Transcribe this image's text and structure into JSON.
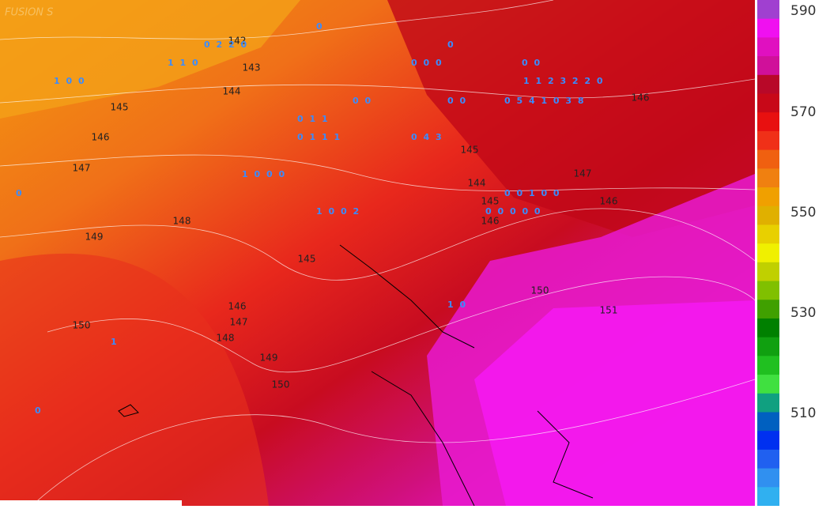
{
  "watermark": "FUSION S",
  "contour_labels": [
    "142",
    "143",
    "144",
    "145",
    "146",
    "147",
    "148",
    "149",
    "150",
    "145",
    "146",
    "147",
    "148",
    "149",
    "150",
    "146",
    "145",
    "144",
    "147",
    "145",
    "146",
    "146",
    "150",
    "151"
  ],
  "precip_labels": [
    "0 2 2 0",
    "1 1 0",
    "0",
    "0",
    "0 0 0",
    "0 0",
    "1 1 2 3 2 2 0",
    "0 5 4 1 0 3 8",
    "0 0",
    "0 0",
    "0 1 1",
    "0 1 1 1",
    "0 4 3",
    "1 0 0 0",
    "0 0 1 0 0",
    "0 0 0 0 0",
    "1 0 0 2",
    "1 0",
    "1 0 0",
    "0",
    "0",
    "1"
  ],
  "colorbar": {
    "ticks": [
      "590",
      "570",
      "550",
      "530",
      "510"
    ]
  }
}
